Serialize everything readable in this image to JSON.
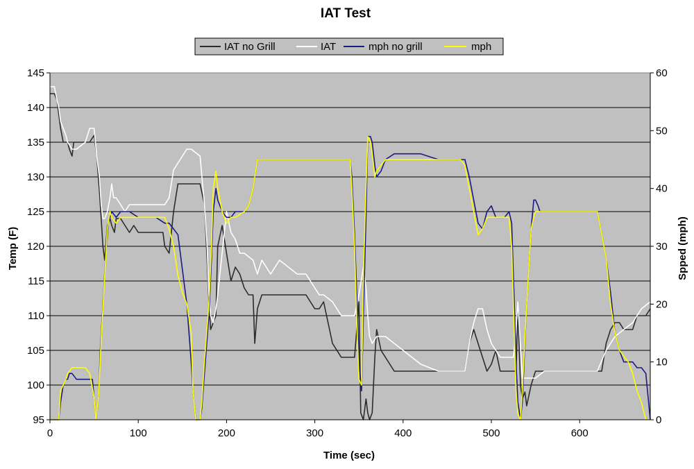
{
  "chart_data": {
    "type": "line",
    "title": "IAT Test",
    "xlabel": "Time (sec)",
    "ylabel": "Temp (F)",
    "y2label": "Spped (mph)",
    "xlim": [
      0,
      680
    ],
    "ylim": [
      95,
      145
    ],
    "y2lim": [
      0,
      60
    ],
    "xticks": [
      0,
      100,
      200,
      300,
      400,
      500,
      600
    ],
    "yticks": [
      95,
      100,
      105,
      110,
      115,
      120,
      125,
      130,
      135,
      140,
      145
    ],
    "y2ticks": [
      0,
      10,
      20,
      30,
      40,
      50,
      60
    ],
    "grid": "horizontal",
    "plot_background": "#c0c0c0",
    "legend_position": "top-center",
    "series": [
      {
        "name": "IAT no Grill",
        "axis": "left",
        "color": "#2b2b2b",
        "x": [
          0,
          5,
          8,
          10,
          12,
          15,
          20,
          22,
          25,
          27,
          30,
          40,
          45,
          50,
          53,
          56,
          58,
          60,
          62,
          65,
          68,
          70,
          73,
          75,
          80,
          85,
          90,
          95,
          100,
          110,
          120,
          128,
          130,
          135,
          140,
          145,
          150,
          160,
          170,
          175,
          178,
          180,
          182,
          185,
          188,
          190,
          195,
          200,
          205,
          210,
          215,
          220,
          225,
          230,
          232,
          235,
          240,
          250,
          260,
          270,
          280,
          290,
          300,
          305,
          310,
          320,
          330,
          340,
          345,
          350,
          352,
          355,
          358,
          360,
          362,
          365,
          368,
          370,
          375,
          380,
          390,
          400,
          410,
          420,
          440,
          460,
          470,
          475,
          480,
          485,
          490,
          495,
          500,
          505,
          510,
          520,
          525,
          528,
          530,
          533,
          535,
          538,
          540,
          545,
          550,
          560,
          580,
          600,
          620,
          625,
          630,
          635,
          640,
          645,
          650,
          655,
          660,
          665,
          670,
          675,
          680
        ],
        "y": [
          142,
          142,
          141,
          139,
          137,
          135,
          135,
          134,
          133,
          135,
          135,
          135,
          135,
          136,
          133,
          128,
          124,
          120,
          118,
          123,
          124,
          123,
          122,
          124,
          124,
          123,
          122,
          123,
          122,
          122,
          122,
          122,
          120,
          119,
          125,
          129,
          129,
          129,
          129,
          126,
          118,
          112,
          108,
          109,
          110,
          120,
          123,
          119,
          115,
          117,
          116,
          114,
          113,
          113,
          106,
          111,
          113,
          113,
          113,
          113,
          113,
          113,
          111,
          111,
          112,
          106,
          104,
          104,
          104,
          112,
          96,
          94,
          98,
          96,
          95,
          96,
          104,
          108,
          105,
          104,
          102,
          102,
          102,
          102,
          102,
          102,
          102,
          106,
          108,
          106,
          104,
          102,
          103,
          105,
          102,
          102,
          102,
          102,
          111,
          100,
          98,
          99,
          97,
          100,
          102,
          102,
          102,
          102,
          102,
          102,
          106,
          108,
          109,
          109,
          108,
          108,
          108,
          110,
          110,
          110,
          111
        ]
      },
      {
        "name": "IAT",
        "axis": "left",
        "color": "#ffffff",
        "x": [
          0,
          5,
          8,
          10,
          12,
          15,
          18,
          20,
          25,
          30,
          40,
          45,
          50,
          53,
          56,
          58,
          60,
          62,
          65,
          68,
          70,
          72,
          75,
          80,
          85,
          90,
          95,
          100,
          110,
          120,
          130,
          135,
          140,
          145,
          150,
          155,
          160,
          170,
          175,
          178,
          180,
          182,
          185,
          188,
          190,
          195,
          200,
          205,
          210,
          215,
          220,
          230,
          235,
          240,
          250,
          260,
          270,
          280,
          290,
          300,
          305,
          310,
          320,
          330,
          340,
          345,
          350,
          355,
          358,
          360,
          362,
          365,
          370,
          380,
          390,
          400,
          410,
          420,
          440,
          460,
          470,
          475,
          480,
          485,
          490,
          495,
          500,
          505,
          510,
          520,
          525,
          528,
          530,
          535,
          540,
          545,
          550,
          560,
          580,
          600,
          620,
          630,
          640,
          650,
          660,
          670,
          680
        ],
        "y": [
          143,
          143,
          141,
          140,
          138,
          137,
          136,
          135,
          134,
          134,
          135,
          137,
          137,
          133,
          130,
          126,
          124,
          124,
          125,
          127,
          129,
          127,
          127,
          126,
          125,
          126,
          126,
          126,
          126,
          126,
          126,
          127,
          131,
          132,
          133,
          134,
          134,
          133,
          126,
          120,
          113,
          110,
          109,
          111,
          113,
          119,
          125,
          122,
          121,
          119,
          119,
          118,
          116,
          118,
          116,
          118,
          117,
          116,
          116,
          114,
          113,
          113,
          112,
          110,
          110,
          110,
          113,
          117,
          114,
          110,
          107,
          106,
          107,
          107,
          106,
          105,
          104,
          103,
          102,
          102,
          102,
          106,
          109,
          111,
          111,
          108,
          106,
          105,
          104,
          104,
          104,
          108,
          112,
          101,
          101,
          101,
          101,
          102,
          102,
          102,
          102,
          105,
          107,
          108,
          109,
          111,
          112
        ]
      },
      {
        "name": "mph no grill",
        "axis": "right",
        "color": "#1a1a80",
        "x": [
          0,
          10,
          12,
          15,
          18,
          20,
          22,
          25,
          30,
          40,
          48,
          50,
          52,
          55,
          57,
          60,
          63,
          66,
          68,
          70,
          75,
          80,
          90,
          100,
          110,
          120,
          130,
          135,
          140,
          145,
          150,
          155,
          160,
          162,
          165,
          170,
          172,
          175,
          178,
          180,
          183,
          185,
          188,
          190,
          195,
          200,
          205,
          210,
          215,
          220,
          225,
          230,
          235,
          240,
          260,
          280,
          300,
          310,
          320,
          330,
          340,
          342,
          345,
          348,
          350,
          353,
          355,
          358,
          360,
          363,
          365,
          368,
          370,
          375,
          380,
          390,
          400,
          420,
          440,
          460,
          465,
          470,
          475,
          480,
          485,
          490,
          495,
          500,
          505,
          510,
          515,
          520,
          523,
          526,
          528,
          530,
          533,
          535,
          540,
          545,
          548,
          550,
          553,
          555,
          560,
          580,
          600,
          620,
          625,
          630,
          635,
          640,
          645,
          650,
          655,
          660,
          665,
          670,
          675,
          680
        ],
        "y": [
          0,
          0,
          3,
          6,
          7,
          7,
          8,
          8,
          7,
          7,
          7,
          4,
          0,
          4,
          12,
          20,
          28,
          34,
          35,
          36,
          35,
          36,
          36,
          35,
          35,
          35,
          34,
          34,
          33,
          32,
          26,
          20,
          10,
          5,
          0,
          0,
          2,
          8,
          14,
          18,
          28,
          36,
          40,
          38,
          36,
          35,
          35,
          36,
          36,
          36,
          37,
          40,
          45,
          45,
          45,
          45,
          45,
          45,
          45,
          45,
          45,
          42,
          32,
          20,
          10,
          5,
          18,
          35,
          49,
          49,
          48,
          44,
          42,
          43,
          45,
          46,
          46,
          46,
          45,
          45,
          45,
          45,
          42,
          38,
          34,
          33,
          36,
          37,
          35,
          35,
          35,
          36,
          34,
          20,
          10,
          3,
          0,
          3,
          20,
          33,
          38,
          38,
          37,
          36,
          36,
          36,
          36,
          36,
          32,
          28,
          22,
          15,
          12,
          10,
          10,
          10,
          9,
          9,
          8,
          0
        ]
      },
      {
        "name": "mph",
        "axis": "right",
        "color": "#ffff00",
        "x": [
          0,
          10,
          12,
          15,
          18,
          20,
          25,
          30,
          40,
          45,
          50,
          52,
          55,
          58,
          62,
          65,
          68,
          70,
          75,
          80,
          90,
          100,
          110,
          120,
          130,
          135,
          140,
          145,
          150,
          155,
          160,
          162,
          165,
          170,
          172,
          175,
          180,
          183,
          185,
          188,
          190,
          195,
          200,
          205,
          210,
          220,
          225,
          230,
          235,
          240,
          260,
          280,
          300,
          320,
          340,
          342,
          345,
          348,
          350,
          353,
          355,
          358,
          360,
          363,
          365,
          368,
          370,
          375,
          380,
          400,
          420,
          440,
          460,
          465,
          470,
          475,
          480,
          485,
          490,
          495,
          500,
          510,
          520,
          523,
          526,
          528,
          530,
          533,
          535,
          540,
          545,
          548,
          550,
          560,
          580,
          600,
          620,
          625,
          630,
          635,
          640,
          645,
          650,
          655,
          660,
          665,
          670,
          675,
          680
        ],
        "y": [
          0,
          0,
          5,
          6,
          7,
          8,
          9,
          9,
          9,
          8,
          4,
          0,
          4,
          14,
          25,
          33,
          36,
          35,
          34,
          35,
          35,
          35,
          35,
          35,
          35,
          33,
          30,
          25,
          22,
          20,
          15,
          5,
          0,
          0,
          3,
          10,
          20,
          30,
          40,
          43,
          40,
          36,
          34,
          35,
          35,
          36,
          37,
          40,
          45,
          45,
          45,
          45,
          45,
          45,
          45,
          40,
          30,
          15,
          7,
          6,
          25,
          40,
          49,
          48,
          46,
          42,
          43,
          44,
          45,
          45,
          45,
          45,
          45,
          45,
          44,
          40,
          36,
          32,
          33,
          35,
          35,
          35,
          35,
          30,
          15,
          5,
          1,
          0,
          5,
          20,
          33,
          35,
          36,
          36,
          36,
          36,
          36,
          32,
          28,
          20,
          15,
          12,
          11,
          10,
          8,
          5,
          3,
          0,
          0
        ]
      }
    ]
  }
}
